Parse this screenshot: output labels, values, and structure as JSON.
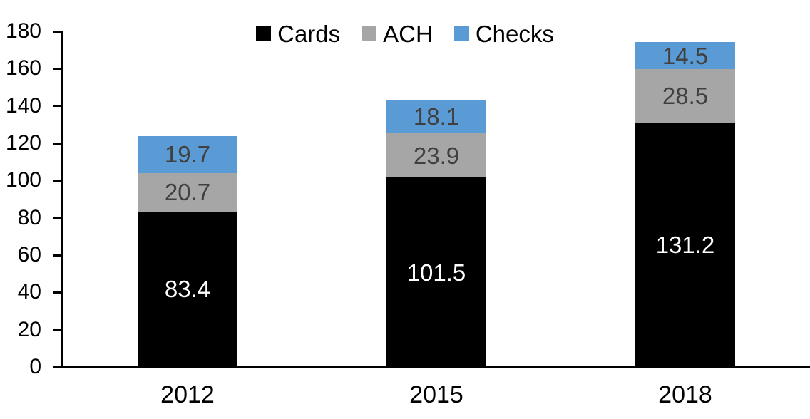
{
  "chart_data": {
    "type": "bar",
    "stacked": true,
    "title": "",
    "xlabel": "",
    "ylabel": "",
    "categories": [
      "2012",
      "2015",
      "2018"
    ],
    "series": [
      {
        "name": "Cards",
        "color": "#000000",
        "label_color": "#ffffff",
        "values": [
          83.4,
          101.5,
          131.2
        ]
      },
      {
        "name": "ACH",
        "color": "#a6a6a6",
        "label_color": "#404040",
        "values": [
          20.7,
          23.9,
          28.5
        ]
      },
      {
        "name": "Checks",
        "color": "#5b9bd5",
        "label_color": "#404040",
        "values": [
          19.7,
          18.1,
          14.5
        ]
      }
    ],
    "totals": [
      123.8,
      143.5,
      174.2
    ],
    "ylim": [
      0,
      180
    ],
    "ytick_step": 20,
    "grid": false,
    "legend_position": "top",
    "axis_color": "#000000"
  }
}
